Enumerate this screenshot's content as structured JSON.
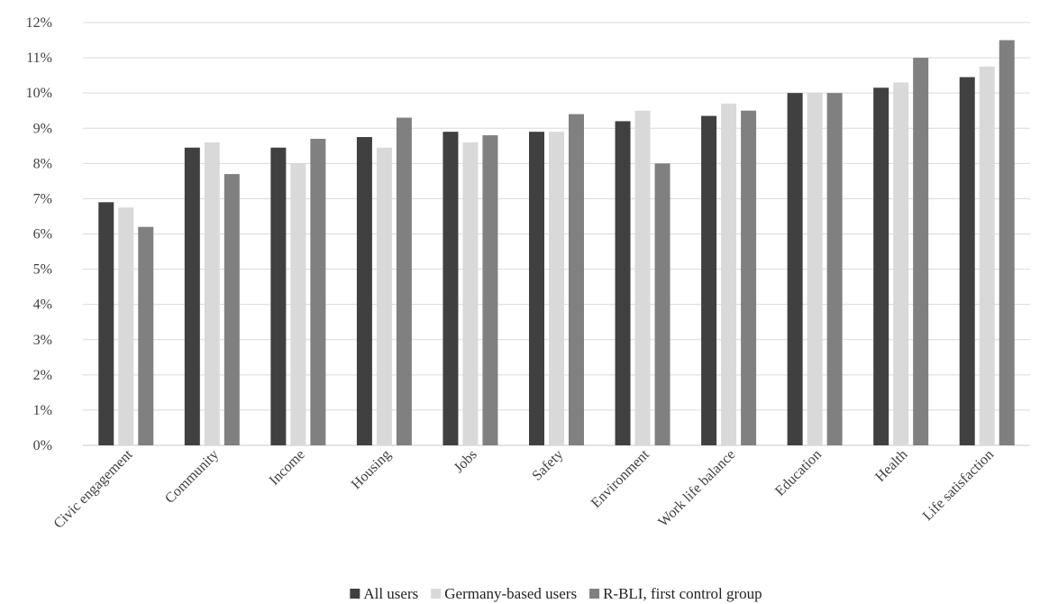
{
  "chart_data": {
    "type": "bar",
    "title": "",
    "xlabel": "",
    "ylabel": "",
    "categories": [
      "Civic engagement",
      "Community",
      "Income",
      "Housing",
      "Jobs",
      "Safety",
      "Environment",
      "Work life balance",
      "Education",
      "Health",
      "Life satisfaction"
    ],
    "series": [
      {
        "name": "All users",
        "color": "#404040",
        "values": [
          6.9,
          8.45,
          8.45,
          8.75,
          8.9,
          8.9,
          9.2,
          9.35,
          10.0,
          10.15,
          10.45
        ]
      },
      {
        "name": "Germany-based users",
        "color": "#d9d9d9",
        "values": [
          6.75,
          8.6,
          8.0,
          8.45,
          8.6,
          8.9,
          9.5,
          9.7,
          10.0,
          10.3,
          10.75
        ]
      },
      {
        "name": "R-BLI, first control group",
        "color": "#808080",
        "values": [
          6.2,
          7.7,
          8.7,
          9.3,
          8.8,
          9.4,
          8.0,
          9.5,
          10.0,
          11.0,
          11.5
        ]
      }
    ],
    "ylim": [
      0,
      12
    ],
    "yticks": [
      "0%",
      "1%",
      "2%",
      "3%",
      "4%",
      "5%",
      "6%",
      "7%",
      "8%",
      "9%",
      "10%",
      "11%",
      "12%"
    ],
    "grid": true,
    "legend": "bottom-center"
  }
}
